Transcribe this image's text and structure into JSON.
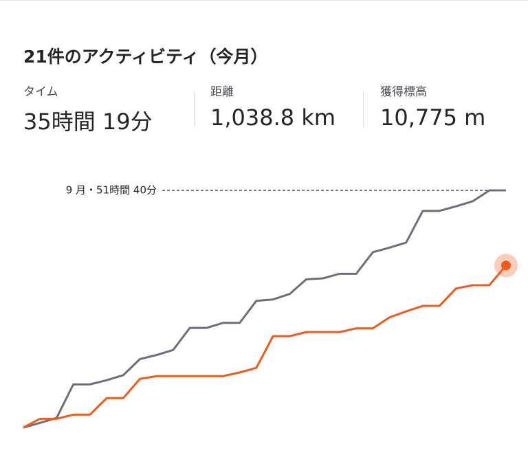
{
  "header": {
    "title": "21件のアクティビティ（今月）"
  },
  "stats": [
    {
      "label": "タイム",
      "value": "35時間 19分"
    },
    {
      "label": "距離",
      "value": "1,038.8 km"
    },
    {
      "label": "獲得標高",
      "value": "10,775 m"
    }
  ],
  "chart_data": {
    "type": "line",
    "reference": {
      "value": 51.67,
      "label": "9 月・51時間 40分"
    },
    "ylim": [
      0,
      51.67
    ],
    "series": [
      {
        "color": "#6e6d7a",
        "values": [
          0,
          1.0,
          2.1,
          9.4,
          9.4,
          10.3,
          11.4,
          14.9,
          15.8,
          16.9,
          21.7,
          21.7,
          22.8,
          22.8,
          27.6,
          27.9,
          29.1,
          32.3,
          32.5,
          33.5,
          33.5,
          38.2,
          39.2,
          40.3,
          47.2,
          47.2,
          48.2,
          49.3,
          51.67,
          51.67
        ]
      },
      {
        "color": "#f05a1a",
        "values": [
          0,
          1.9,
          1.9,
          2.8,
          2.8,
          6.4,
          6.4,
          10.6,
          11.2,
          11.2,
          11.2,
          11.2,
          11.2,
          12.0,
          13.0,
          19.9,
          19.9,
          20.8,
          20.8,
          20.8,
          21.6,
          21.6,
          24.0,
          25.3,
          26.5,
          26.5,
          30.3,
          31.0,
          31.0,
          35.3
        ]
      }
    ]
  }
}
